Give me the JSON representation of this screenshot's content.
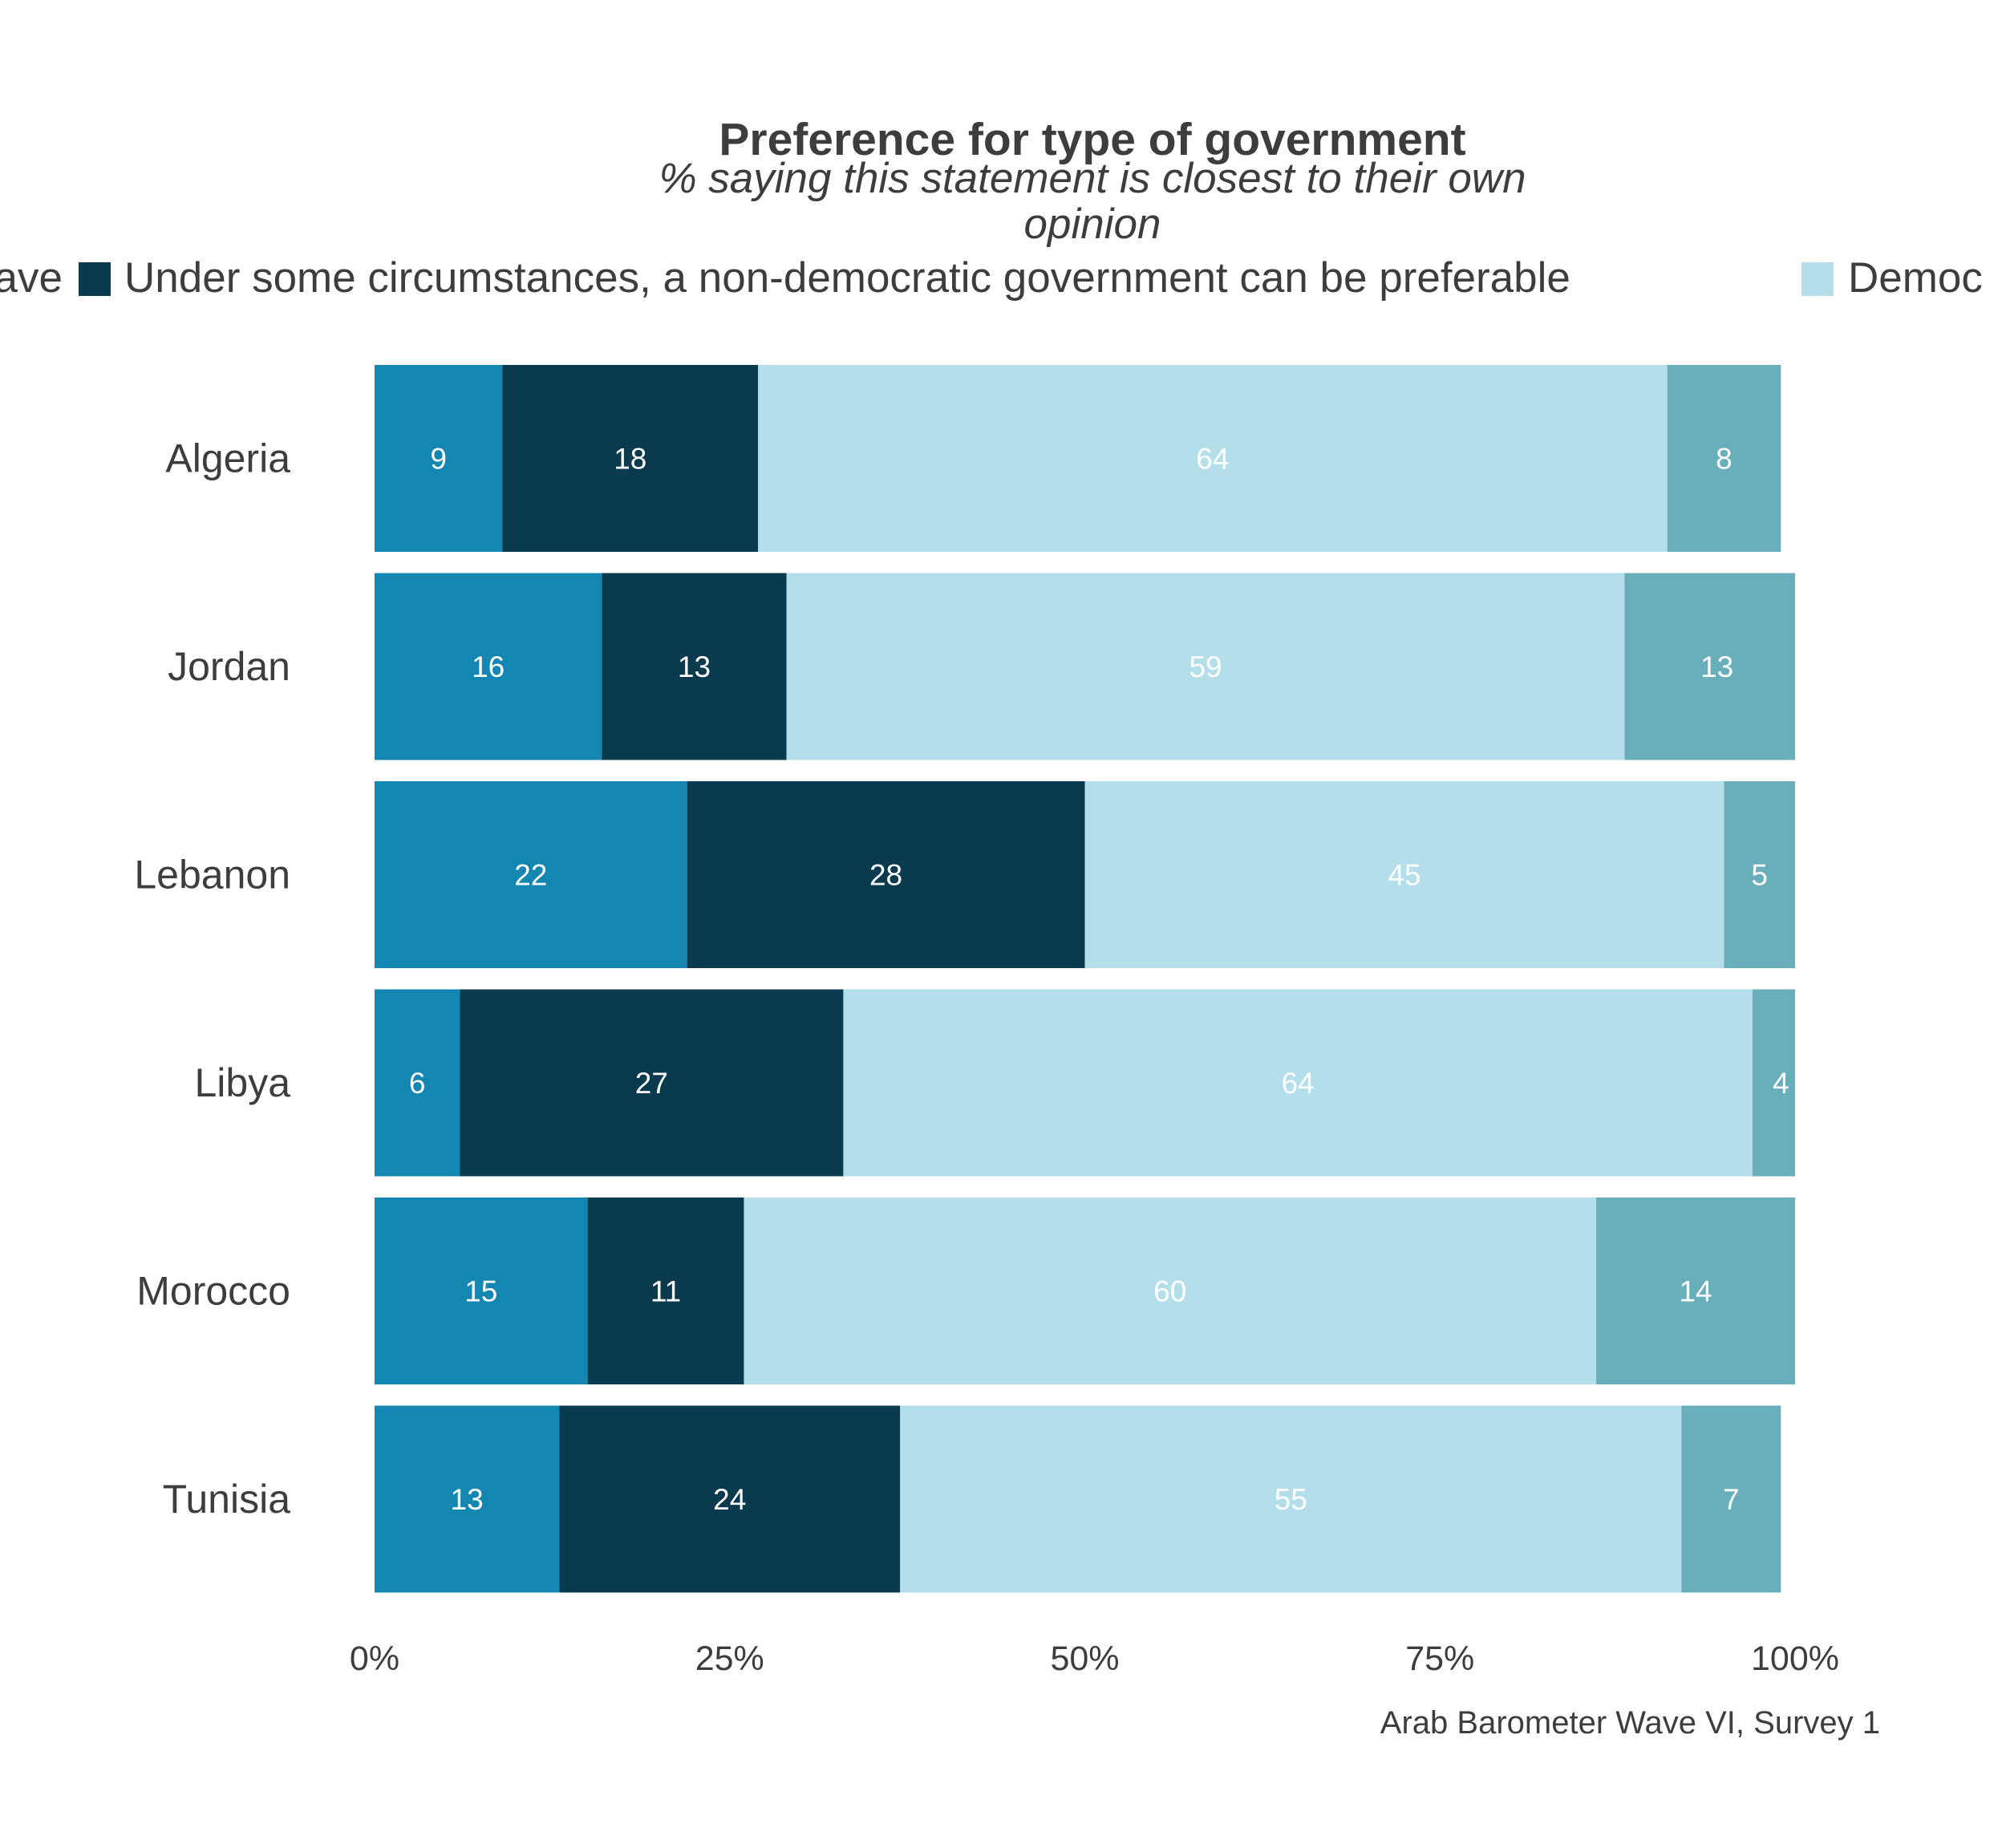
{
  "chart_data": {
    "type": "bar",
    "orientation": "horizontal",
    "stacked": true,
    "title": "Preference for type of government",
    "subtitle": [
      "% saying this statement is closest to their own",
      "opinion"
    ],
    "legend": {
      "placement": "top",
      "entries": [
        {
          "text": "ave",
          "color": "#1386b1"
        },
        {
          "text": "Under some circumstances, a non-democratic government can be preferable",
          "color": "#093a4d"
        },
        {
          "text": "Democ",
          "color": "#b4dfea"
        }
      ]
    },
    "categories": [
      "Algeria",
      "Jordan",
      "Lebanon",
      "Libya",
      "Morocco",
      "Tunisia"
    ],
    "series": [
      {
        "color": "#1386b1",
        "values": [
          9,
          16,
          22,
          6,
          15,
          13
        ],
        "labels": [
          "9",
          "16",
          "22",
          "6",
          "15",
          "13"
        ]
      },
      {
        "name": "Under some circumstances, a non-democratic government can be preferable",
        "color": "#093a4d",
        "values": [
          18,
          13,
          28,
          27,
          11,
          24
        ],
        "labels": [
          "18",
          "13",
          "28",
          "27",
          "11",
          "24"
        ]
      },
      {
        "color": "#b4dfea",
        "values": [
          64,
          59,
          45,
          64,
          60,
          55
        ],
        "labels": [
          "64",
          "59",
          "45",
          "64",
          "60",
          "55"
        ]
      },
      {
        "color": "#69aebb",
        "values": [
          8,
          13,
          5,
          4,
          14,
          7
        ],
        "labels": [
          "8",
          "13",
          "5",
          "4",
          "14",
          "7"
        ]
      }
    ],
    "xlim": [
      0,
      100
    ],
    "xticks": [
      0,
      25,
      50,
      75,
      100
    ],
    "xtick_labels": [
      "0%",
      "25%",
      "50%",
      "75%",
      "100%"
    ],
    "grid": false,
    "caption": "Arab Barometer Wave VI, Survey 1"
  }
}
